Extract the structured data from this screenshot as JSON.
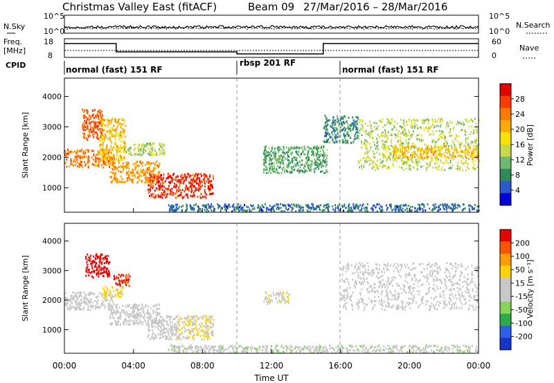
{
  "header": {
    "station": "Christmas Valley East (fitACF)",
    "beam": "Beam 09",
    "dates": "27/Mar/2016 – 28/Mar/2016"
  },
  "noise_panel": {
    "left_label": "N.Sky",
    "right_label": "N.Search",
    "left_ticks": [
      "10^5",
      "10^0"
    ],
    "right_ticks": [
      "10^5",
      "10^0"
    ]
  },
  "freq_panel": {
    "left_label_1": "Freq.",
    "left_label_2": "[MHz]",
    "right_label": "Nave",
    "left_ticks": [
      "18",
      "8"
    ],
    "right_ticks": [
      "60",
      "0"
    ]
  },
  "cpid": {
    "label": "CPID",
    "segments": [
      "normal (fast) 151 RF",
      "rbsp 201 RF",
      "normal (fast) 151 RF"
    ],
    "segment_starts_hours": [
      0,
      10,
      16
    ]
  },
  "colors": {
    "power_scale": [
      "#0000dd",
      "#2a59c9",
      "#2e8b57",
      "#6fb86f",
      "#c8d84a",
      "#f7e300",
      "#ffaa00",
      "#ff7a00",
      "#ff3b00",
      "#e00000"
    ],
    "velocity_scale": [
      "#1736c9",
      "#2e5fe8",
      "#2ea84a",
      "#86d45a",
      "#c8c8c8",
      "#c8c8c8",
      "#ffd400",
      "#ff9a00",
      "#ff5500",
      "#e60000"
    ]
  },
  "power_colorbar": {
    "label": "Power [dB]",
    "ticks": [
      "28",
      "24",
      "20",
      "16",
      "12",
      "8",
      "4"
    ]
  },
  "velocity_colorbar": {
    "label": "Velocity [m s⁻¹]",
    "ticks": [
      "200",
      "100",
      "50",
      "15",
      "-15",
      "-50",
      "-100",
      "-200"
    ]
  },
  "chart_data": [
    {
      "type": "heatmap",
      "name": "power",
      "ylabel": "Slant Range [km]",
      "xlabel": "",
      "x_range_hours": [
        0,
        24
      ],
      "ylim": [
        200,
        4600
      ],
      "y_ticks": [
        1000,
        2000,
        3000,
        4000
      ],
      "x_ticks_hours": [
        0,
        4,
        8,
        12,
        16,
        20,
        24
      ],
      "x_tick_labels": [
        "00:00",
        "04:00",
        "08:00",
        "12:00",
        "16:00",
        "20:00",
        "00:00"
      ],
      "zlim": [
        0,
        32
      ],
      "echo_regions": [
        {
          "t_start": 0.0,
          "t_end": 2.8,
          "r_start": 1700,
          "r_end": 2300,
          "value": 24
        },
        {
          "t_start": 1.0,
          "t_end": 2.2,
          "r_start": 2600,
          "r_end": 3600,
          "value": 26
        },
        {
          "t_start": 2.0,
          "t_end": 3.5,
          "r_start": 1900,
          "r_end": 3300,
          "value": 20
        },
        {
          "t_start": 2.6,
          "t_end": 5.5,
          "r_start": 1200,
          "r_end": 1900,
          "value": 22
        },
        {
          "t_start": 3.4,
          "t_end": 5.8,
          "r_start": 2100,
          "r_end": 2500,
          "value": 14
        },
        {
          "t_start": 4.8,
          "t_end": 8.6,
          "r_start": 700,
          "r_end": 1500,
          "value": 28
        },
        {
          "t_start": 11.5,
          "t_end": 15.2,
          "r_start": 1500,
          "r_end": 2400,
          "value": 10
        },
        {
          "t_start": 15.0,
          "t_end": 17.0,
          "r_start": 2500,
          "r_end": 3400,
          "value": 8
        },
        {
          "t_start": 17.0,
          "t_end": 24.0,
          "r_start": 1600,
          "r_end": 3300,
          "value": 14
        },
        {
          "t_start": 19.0,
          "t_end": 24.0,
          "r_start": 2000,
          "r_end": 2400,
          "value": 20
        },
        {
          "t_start": 6.0,
          "t_end": 24.0,
          "r_start": 250,
          "r_end": 500,
          "value": 6
        }
      ]
    },
    {
      "type": "heatmap",
      "name": "velocity",
      "ylabel": "Slant Range [km]",
      "xlabel": "Time UT",
      "x_range_hours": [
        0,
        24
      ],
      "ylim": [
        200,
        4600
      ],
      "y_ticks": [
        1000,
        2000,
        3000,
        4000
      ],
      "x_ticks_hours": [
        0,
        4,
        8,
        12,
        16,
        20,
        24
      ],
      "x_tick_labels": [
        "00:00",
        "04:00",
        "08:00",
        "12:00",
        "16:00",
        "20:00",
        "00:00"
      ],
      "zlim": [
        -250,
        250
      ],
      "echo_regions": [
        {
          "t_start": 0.0,
          "t_end": 2.8,
          "r_start": 1700,
          "r_end": 2300,
          "value": 0
        },
        {
          "t_start": 1.2,
          "t_end": 2.6,
          "r_start": 2800,
          "r_end": 3600,
          "value": 220
        },
        {
          "t_start": 2.8,
          "t_end": 3.8,
          "r_start": 2500,
          "r_end": 2900,
          "value": 200
        },
        {
          "t_start": 2.2,
          "t_end": 3.4,
          "r_start": 2100,
          "r_end": 2500,
          "value": 60
        },
        {
          "t_start": 2.6,
          "t_end": 5.5,
          "r_start": 1200,
          "r_end": 1900,
          "value": 0
        },
        {
          "t_start": 4.8,
          "t_end": 6.4,
          "r_start": 700,
          "r_end": 1500,
          "value": 5
        },
        {
          "t_start": 6.4,
          "t_end": 8.6,
          "r_start": 700,
          "r_end": 1500,
          "value": 45
        },
        {
          "t_start": 11.5,
          "t_end": 13.0,
          "r_start": 1900,
          "r_end": 2300,
          "value": 40
        },
        {
          "t_start": 16.0,
          "t_end": 24.0,
          "r_start": 1700,
          "r_end": 3300,
          "value": 0
        },
        {
          "t_start": 6.0,
          "t_end": 24.0,
          "r_start": 250,
          "r_end": 500,
          "value": -40
        }
      ]
    }
  ]
}
